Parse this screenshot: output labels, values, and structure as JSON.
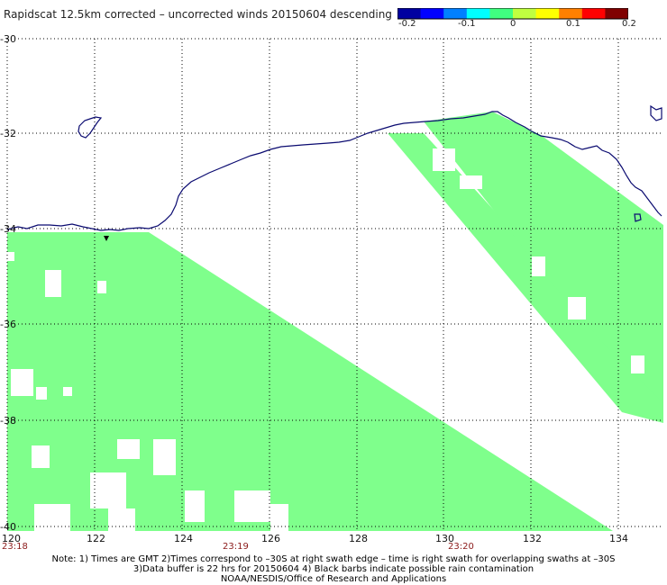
{
  "title": "Rapidscat 12.5km corrected – uncorrected winds 20150604 descending",
  "colorbar": {
    "tick_labels": [
      "-0.2",
      "-0.1",
      "0",
      "0.1",
      "0.2"
    ],
    "colors": [
      "#0000a0",
      "#0000ff",
      "#0080ff",
      "#00ffff",
      "#40ff80",
      "#c0ff40",
      "#ffff00",
      "#ff8000",
      "#ff0000",
      "#800000"
    ]
  },
  "map": {
    "lat_ticks": [
      "-30",
      "-32",
      "-34",
      "-36",
      "-38",
      "-40"
    ],
    "lon_ticks": [
      "120",
      "122",
      "124",
      "126",
      "128",
      "130",
      "132",
      "134"
    ],
    "time_labels": [
      "23:18",
      "23:19",
      "23:20"
    ],
    "swath_color": "#7fff8c",
    "coast_color": "#0a0a70",
    "grid_style": "dotted"
  },
  "notes": [
    "Note: 1) Times are GMT 2)Times correspond to –30S at right swath edge – time is right swath for overlapping swaths at –30S",
    "3)Data buffer is 22 hrs for 20150604 4) Black barbs indicate possible rain contamination",
    "NOAA/NESDIS/Office of Research and Applications"
  ]
}
